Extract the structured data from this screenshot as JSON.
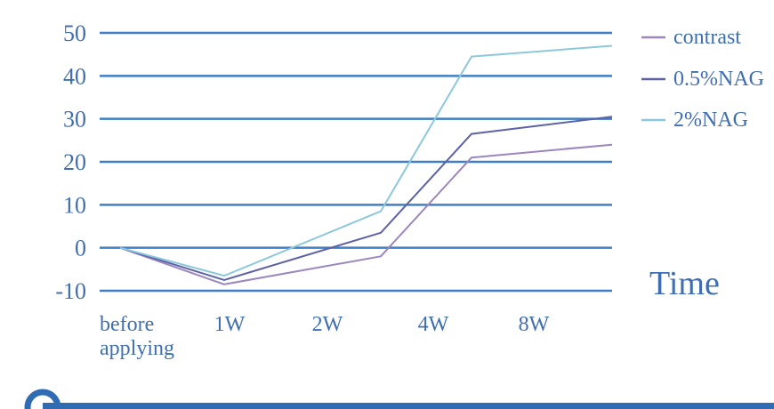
{
  "colors": {
    "grid": "#3f7fc3",
    "text": "#3f6fb0",
    "bottom_bar": "#2f6cb3"
  },
  "chart_data": {
    "type": "line",
    "categories": [
      "before applying",
      "1W",
      "2W",
      "4W",
      "8W"
    ],
    "category_lines": [
      [
        "before",
        "applying"
      ],
      [
        "1W"
      ],
      [
        "2W"
      ],
      [
        "4W"
      ],
      [
        "8W"
      ]
    ],
    "yticks": [
      "50",
      "40",
      "30",
      "20",
      "10",
      "0",
      "-10"
    ],
    "ylim": [
      -10,
      50
    ],
    "xlabel": "Time",
    "grid": true,
    "legend_position": "right",
    "series": [
      {
        "name": "contrast",
        "color": "#9b86bf",
        "values": [
          0,
          -8.5,
          -2,
          21,
          24
        ]
      },
      {
        "name": "0.5%NAG",
        "color": "#5d62a8",
        "values": [
          0,
          -7.5,
          3.5,
          26.5,
          30.5
        ]
      },
      {
        "name": "2%NAG",
        "color": "#8cc8dc",
        "values": [
          0,
          -6.5,
          8.5,
          44.5,
          47
        ]
      }
    ]
  }
}
